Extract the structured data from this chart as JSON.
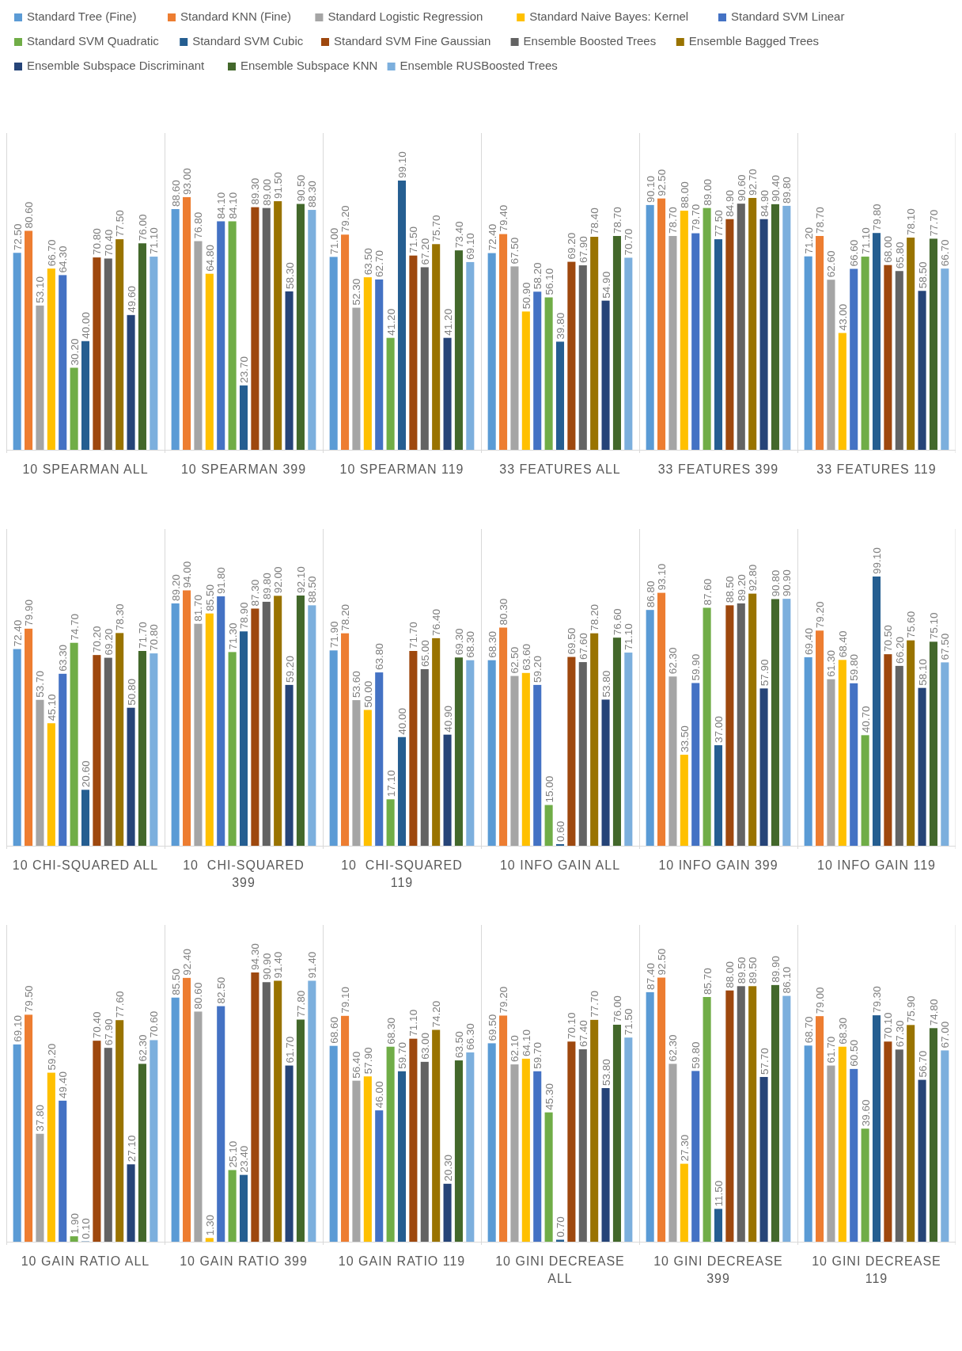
{
  "chart_data": [
    {
      "type": "bar",
      "categories": [
        "10 SPEARMAN ALL",
        "10 SPEARMAN 399",
        "10 SPEARMAN 119",
        "33 FEATURES ALL",
        "33 FEATURES 399",
        "33 FEATURES 119"
      ],
      "legend": "top",
      "series": [
        {
          "name": "Standard Tree (Fine)",
          "color": "#5b9bd5",
          "values": [
            72.5,
            88.6,
            71.0,
            72.4,
            90.1,
            71.2
          ],
          "value_labels": [
            "72.50",
            "88.60",
            "71.00",
            "72.40",
            "90.10",
            "71.20"
          ]
        },
        {
          "name": "Standard KNN (Fine)",
          "color": "#ed7d31",
          "values": [
            80.6,
            93.0,
            79.2,
            79.4,
            92.5,
            78.7
          ],
          "value_labels": [
            "80.60",
            "93.00",
            "79.20",
            "79.40",
            "92.50",
            "78.70"
          ]
        },
        {
          "name": "Standard Logistic Regression",
          "color": "#a5a5a5",
          "values": [
            53.1,
            76.8,
            52.3,
            67.5,
            78.7,
            62.6
          ],
          "value_labels": [
            "53.10",
            "76.80",
            "52.30",
            "67.50",
            "78.70",
            "62.60"
          ]
        },
        {
          "name": "Standard Naive Bayes: Kernel",
          "color": "#ffc000",
          "values": [
            66.7,
            64.8,
            63.5,
            50.9,
            88.0,
            43.0
          ],
          "value_labels": [
            "66.70",
            "64.80",
            "63.50",
            "50.90",
            "88.00",
            "43.00"
          ]
        },
        {
          "name": "Standard SVM Linear",
          "color": "#4472c4",
          "values": [
            64.3,
            84.1,
            62.7,
            58.2,
            79.7,
            66.6
          ],
          "value_labels": [
            "64.30",
            "84.10",
            "62.70",
            "58.20",
            "79.70",
            "66.60"
          ]
        },
        {
          "name": "Standard SVM Quadratic",
          "color": "#70ad47",
          "values": [
            30.2,
            84.1,
            41.2,
            56.1,
            89.0,
            71.1
          ],
          "value_labels": [
            "30.20",
            "84.10",
            "41.20",
            "56.10",
            "89.00",
            "71.10"
          ]
        },
        {
          "name": "Standard SVM Cubic",
          "color": "#255e91",
          "values": [
            40.0,
            23.7,
            99.1,
            39.8,
            77.5,
            79.8
          ],
          "value_labels": [
            "40.00",
            "23.70",
            "99.10",
            "39.80",
            "77.50",
            "79.80"
          ]
        },
        {
          "name": "Standard SVM Fine Gaussian",
          "color": "#9e480e",
          "values": [
            70.8,
            89.3,
            71.5,
            69.2,
            84.9,
            68.0
          ],
          "value_labels": [
            "70.80",
            "89.30",
            "71.50",
            "69.20",
            "84.90",
            "68.00"
          ]
        },
        {
          "name": "Ensemble Boosted Trees",
          "color": "#636363",
          "values": [
            70.4,
            89.0,
            67.2,
            67.9,
            90.6,
            65.8
          ],
          "value_labels": [
            "70.40",
            "89.00",
            "67.20",
            "67.90",
            "90.60",
            "65.80"
          ]
        },
        {
          "name": "Ensemble Bagged Trees",
          "color": "#997300",
          "values": [
            77.5,
            91.5,
            75.7,
            78.4,
            92.7,
            78.1
          ],
          "value_labels": [
            "77.50",
            "91.50",
            "75.70",
            "78.40",
            "92.70",
            "78.10"
          ]
        },
        {
          "name": "Ensemble Subspace Discriminant",
          "color": "#264478",
          "values": [
            49.6,
            58.3,
            41.2,
            54.9,
            84.9,
            58.5
          ],
          "value_labels": [
            "49.60",
            "58.30",
            "41.20",
            "54.90",
            "84.90",
            "58.50"
          ]
        },
        {
          "name": "Ensemble Subspace KNN",
          "color": "#43682b",
          "values": [
            76.0,
            90.5,
            73.4,
            78.7,
            90.4,
            77.7
          ],
          "value_labels": [
            "76.00",
            "90.50",
            "73.40",
            "78.70",
            "90.40",
            "77.70"
          ]
        },
        {
          "name": "Ensemble RUSBoosted Trees",
          "color": "#7cafdd",
          "values": [
            71.1,
            88.3,
            69.1,
            70.7,
            89.8,
            66.7
          ],
          "value_labels": [
            "71.10",
            "88.30",
            "69.10",
            "70.70",
            "89.80",
            "66.70"
          ]
        }
      ]
    },
    {
      "type": "bar",
      "categories": [
        "10 CHI-SQUARED ALL",
        "10  CHI-SQUARED 399",
        "10  CHI-SQUARED 119",
        "10 INFO GAIN ALL",
        "10 INFO GAIN 399",
        "10 INFO GAIN 119"
      ],
      "series": [
        {
          "color": "#5b9bd5",
          "values": [
            72.4,
            89.2,
            71.9,
            68.3,
            86.8,
            69.4
          ],
          "value_labels": [
            "72.40",
            "89.20",
            "71.90",
            "68.30",
            "86.80",
            "69.40"
          ]
        },
        {
          "color": "#ed7d31",
          "values": [
            79.9,
            94.0,
            78.2,
            80.3,
            93.1,
            79.2
          ],
          "value_labels": [
            "79.90",
            "94.00",
            "78.20",
            "80.30",
            "93.10",
            "79.20"
          ]
        },
        {
          "color": "#a5a5a5",
          "values": [
            53.7,
            81.7,
            53.6,
            62.5,
            62.3,
            61.3
          ],
          "value_labels": [
            "53.70",
            "81.70",
            "53.60",
            "62.50",
            "62.30",
            "61.30"
          ]
        },
        {
          "color": "#ffc000",
          "values": [
            45.1,
            85.5,
            50.0,
            63.6,
            33.5,
            68.4
          ],
          "value_labels": [
            "45.10",
            "85.50",
            "50.00",
            "63.60",
            "33.50",
            "68.40"
          ]
        },
        {
          "color": "#4472c4",
          "values": [
            63.3,
            91.8,
            63.8,
            59.2,
            59.9,
            59.8
          ],
          "value_labels": [
            "63.30",
            "91.80",
            "63.80",
            "59.20",
            "59.90",
            "59.80"
          ]
        },
        {
          "color": "#70ad47",
          "values": [
            74.7,
            71.3,
            17.1,
            15.0,
            87.6,
            40.7
          ],
          "value_labels": [
            "74.70",
            "71.30",
            "17.10",
            "15.00",
            "87.60",
            "40.70"
          ]
        },
        {
          "color": "#255e91",
          "values": [
            20.6,
            78.9,
            40.0,
            0.6,
            37.0,
            99.1
          ],
          "value_labels": [
            "20.60",
            "78.90",
            "40.00",
            "0.60",
            "37.00",
            "99.10"
          ]
        },
        {
          "color": "#9e480e",
          "values": [
            70.2,
            87.3,
            71.7,
            69.5,
            88.5,
            70.5
          ],
          "value_labels": [
            "70.20",
            "87.30",
            "71.70",
            "69.50",
            "88.50",
            "70.50"
          ]
        },
        {
          "color": "#636363",
          "values": [
            69.2,
            89.8,
            65.0,
            67.6,
            89.2,
            66.2
          ],
          "value_labels": [
            "69.20",
            "89.80",
            "65.00",
            "67.60",
            "89.20",
            "66.20"
          ]
        },
        {
          "color": "#997300",
          "values": [
            78.3,
            92.0,
            76.4,
            78.2,
            92.8,
            75.6
          ],
          "value_labels": [
            "78.30",
            "92.00",
            "76.40",
            "78.20",
            "92.80",
            "75.60"
          ]
        },
        {
          "color": "#264478",
          "values": [
            50.8,
            59.2,
            40.9,
            53.8,
            57.9,
            58.1
          ],
          "value_labels": [
            "50.80",
            "59.20",
            "40.90",
            "53.80",
            "57.90",
            "58.10"
          ]
        },
        {
          "color": "#43682b",
          "values": [
            71.7,
            92.1,
            69.3,
            76.6,
            90.8,
            75.1
          ],
          "value_labels": [
            "71.70",
            "92.10",
            "69.30",
            "76.60",
            "90.80",
            "75.10"
          ]
        },
        {
          "color": "#7cafdd",
          "values": [
            70.8,
            88.5,
            68.3,
            71.1,
            90.9,
            67.5
          ],
          "value_labels": [
            "70.80",
            "88.50",
            "68.30",
            "71.10",
            "90.90",
            "67.50"
          ]
        }
      ]
    },
    {
      "type": "bar",
      "categories": [
        "10 GAIN RATIO ALL",
        "10 GAIN RATIO 399",
        "10 GAIN RATIO 119",
        "10 GINI DECREASE ALL",
        "10 GINI DECREASE 399",
        "10 GINI DECREASE 119"
      ],
      "series": [
        {
          "color": "#5b9bd5",
          "values": [
            69.1,
            85.5,
            68.6,
            69.5,
            87.4,
            68.7
          ],
          "value_labels": [
            "69.10",
            "85.50",
            "68.60",
            "69.50",
            "87.40",
            "68.70"
          ]
        },
        {
          "color": "#ed7d31",
          "values": [
            79.5,
            92.4,
            79.1,
            79.2,
            92.5,
            79.0
          ],
          "value_labels": [
            "79.50",
            "92.40",
            "79.10",
            "79.20",
            "92.50",
            "79.00"
          ]
        },
        {
          "color": "#a5a5a5",
          "values": [
            37.8,
            80.6,
            56.4,
            62.1,
            62.3,
            61.7
          ],
          "value_labels": [
            "37.80",
            "80.60",
            "56.40",
            "62.10",
            "62.30",
            "61.70"
          ]
        },
        {
          "color": "#ffc000",
          "values": [
            59.2,
            1.3,
            57.9,
            64.1,
            27.3,
            68.3
          ],
          "value_labels": [
            "59.20",
            "1.30",
            "57.90",
            "64.10",
            "27.30",
            "68.30"
          ]
        },
        {
          "color": "#4472c4",
          "values": [
            49.4,
            82.5,
            46.0,
            59.7,
            59.8,
            60.5
          ],
          "value_labels": [
            "49.40",
            "82.50",
            "46.00",
            "59.70",
            "59.80",
            "60.50"
          ]
        },
        {
          "color": "#70ad47",
          "values": [
            1.9,
            25.1,
            68.3,
            45.3,
            85.7,
            39.6
          ],
          "value_labels": [
            "1.90",
            "25.10",
            "68.30",
            "45.30",
            "85.70",
            "39.60"
          ]
        },
        {
          "color": "#255e91",
          "values": [
            0.1,
            23.4,
            59.7,
            0.7,
            11.5,
            79.3
          ],
          "value_labels": [
            "0.10",
            "23.40",
            "59.70",
            "0.70",
            "11.50",
            "79.30"
          ]
        },
        {
          "color": "#9e480e",
          "values": [
            70.4,
            94.3,
            71.1,
            70.1,
            88.0,
            70.1
          ],
          "value_labels": [
            "70.40",
            "94.30",
            "71.10",
            "70.10",
            "88.00",
            "70.10"
          ]
        },
        {
          "color": "#636363",
          "values": [
            67.9,
            90.9,
            63.0,
            67.4,
            89.5,
            67.3
          ],
          "value_labels": [
            "67.90",
            "90.90",
            "63.00",
            "67.40",
            "89.50",
            "67.30"
          ]
        },
        {
          "color": "#997300",
          "values": [
            77.6,
            91.4,
            74.2,
            77.7,
            89.5,
            75.9
          ],
          "value_labels": [
            "77.60",
            "91.40",
            "74.20",
            "77.70",
            "89.50",
            "75.90"
          ]
        },
        {
          "color": "#264478",
          "values": [
            27.1,
            61.7,
            20.3,
            53.8,
            57.7,
            56.7
          ],
          "value_labels": [
            "27.10",
            "61.70",
            "20.30",
            "53.80",
            "57.70",
            "56.70"
          ]
        },
        {
          "color": "#43682b",
          "values": [
            62.3,
            77.8,
            63.5,
            76.0,
            89.9,
            74.8
          ],
          "value_labels": [
            "62.30",
            "77.80",
            "63.50",
            "76.00",
            "89.90",
            "74.80"
          ]
        },
        {
          "color": "#7cafdd",
          "values": [
            70.6,
            91.4,
            66.3,
            71.5,
            86.1,
            67.0
          ],
          "value_labels": [
            "70.60",
            "91.40",
            "66.30",
            "71.50",
            "86.10",
            "67.00"
          ]
        }
      ]
    }
  ]
}
